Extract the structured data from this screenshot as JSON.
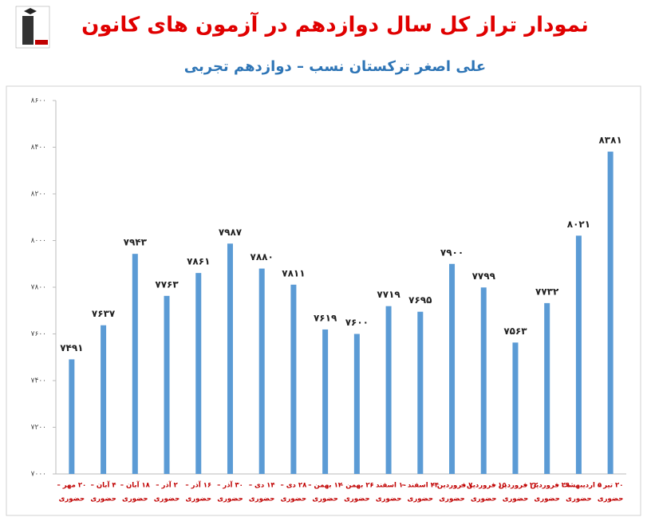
{
  "chart_data": {
    "type": "bar",
    "title": "نمودار تراز کل سال دوازدهم در آزمون های کانون",
    "subtitle": "علی اصغر ترکستان نسب – دوازدهم تجربی",
    "categories": [
      [
        "۲۰ مهر –",
        "حضوری"
      ],
      [
        "۴ آبان –",
        "حضوری"
      ],
      [
        "۱۸ آبان –",
        "حضوری"
      ],
      [
        "۲ آذر –",
        "حضوری"
      ],
      [
        "۱۶ آذر –",
        "حضوری"
      ],
      [
        "۳۰ آذر –",
        "حضوری"
      ],
      [
        "۱۴ دی –",
        "حضوری"
      ],
      [
        "۲۸ دی –",
        "حضوری"
      ],
      [
        "۱۲ بهمن –",
        "حضوری"
      ],
      [
        "۲۶ بهمن –",
        "حضوری"
      ],
      [
        "۱۰ اسفند –",
        "حضوری"
      ],
      [
        "۲۴ اسفند –",
        "حضوری"
      ],
      [
        "۷ فروردین –",
        "حضوری"
      ],
      [
        "۱۵ فروردین –",
        "حضوری"
      ],
      [
        "۲۲ فروردین –",
        "حضوری"
      ],
      [
        "۲۹ فروردین –",
        "حضوری"
      ],
      [
        "۵ اردیبهشت –",
        "حضوری"
      ],
      [
        "۲۰ تیر –",
        "حضوری"
      ]
    ],
    "values": [
      7491,
      7637,
      7943,
      7763,
      7861,
      7987,
      7880,
      7811,
      7619,
      7600,
      7719,
      7695,
      7900,
      7799,
      7563,
      7732,
      8021,
      8381
    ],
    "value_labels": [
      "۷۴۹۱",
      "۷۶۳۷",
      "۷۹۴۳",
      "۷۷۶۳",
      "۷۸۶۱",
      "۷۹۸۷",
      "۷۸۸۰",
      "۷۸۱۱",
      "۷۶۱۹",
      "۷۶۰۰",
      "۷۷۱۹",
      "۷۶۹۵",
      "۷۹۰۰",
      "۷۷۹۹",
      "۷۵۶۳",
      "۷۷۳۲",
      "۸۰۲۱",
      "۸۳۸۱"
    ],
    "color": "#5b9bd5",
    "ylim": [
      7000,
      8600
    ],
    "yticks": [
      {
        "value": 7000,
        "label": "۷۰۰۰"
      },
      {
        "value": 7200,
        "label": "۷۲۰۰"
      },
      {
        "value": 7400,
        "label": "۷۴۰۰"
      },
      {
        "value": 7600,
        "label": "۷۶۰۰"
      },
      {
        "value": 7800,
        "label": "۷۸۰۰"
      },
      {
        "value": 8000,
        "label": "۸۰۰۰"
      },
      {
        "value": 8200,
        "label": "۸۲۰۰"
      },
      {
        "value": 8400,
        "label": "۸۴۰۰"
      },
      {
        "value": 8600,
        "label": "۸۶۰۰"
      }
    ],
    "grid": false
  }
}
